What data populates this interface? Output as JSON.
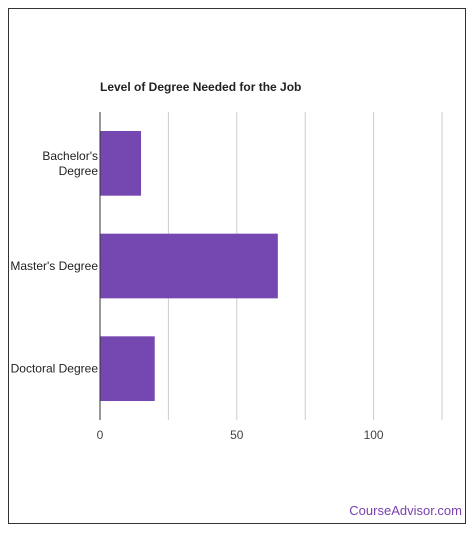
{
  "chart_data": {
    "type": "bar",
    "orientation": "horizontal",
    "title": "Level of Degree Needed for the Job",
    "categories": [
      "Bachelor's\nDegree",
      "Master's Degree",
      "Doctoral Degree"
    ],
    "values": [
      15,
      65,
      20
    ],
    "xlabel": "",
    "ylabel": "",
    "xlim": [
      0,
      125
    ],
    "xticks": [
      0,
      50,
      100
    ],
    "gridlines": [
      0,
      25,
      50,
      75,
      100,
      125
    ],
    "grid": true,
    "legend": "none",
    "bar_color": "#7547b1"
  },
  "brand": {
    "text": "CourseAdvisor.com",
    "color": "#7a3fb0"
  }
}
